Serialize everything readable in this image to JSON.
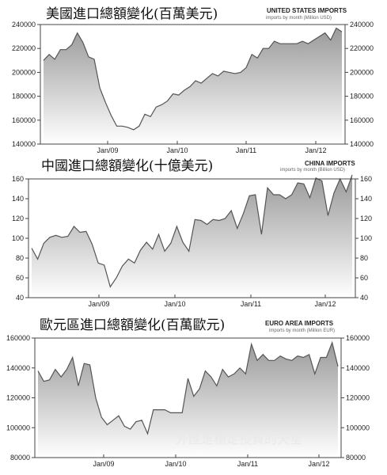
{
  "chart_data": [
    {
      "type": "area",
      "title": "美國進口總額變化(百萬美元)",
      "subtitle": "UNITED STATES IMPORTS",
      "subsubtitle": "imports by month (Million USD)",
      "x_tick_labels": [
        "Jan/09",
        "Jan/10",
        "Jan/11",
        "Jan/12"
      ],
      "ylim": [
        140000,
        240000
      ],
      "y_ticks": [
        140000,
        160000,
        180000,
        200000,
        220000,
        240000
      ],
      "y_tick_labels": [
        "140000",
        "160000",
        "180000",
        "200000",
        "220000",
        "240000"
      ],
      "grid": false,
      "series": [
        {
          "values": [
            210000,
            215000,
            211000,
            219000,
            219000,
            223000,
            233000,
            225000,
            213000,
            211000,
            187000,
            175000,
            164000,
            155000,
            155000,
            154000,
            152000,
            155000,
            165000,
            163000,
            171000,
            173000,
            176000,
            182000,
            181000,
            185000,
            188000,
            193000,
            191000,
            195000,
            199000,
            197000,
            201000,
            200000,
            199000,
            200000,
            204000,
            215000,
            212000,
            220000,
            220000,
            226000,
            224000,
            224000,
            224000,
            224000,
            226000,
            224000,
            227000,
            230000,
            233000,
            227000,
            237000,
            234000
          ]
        }
      ]
    },
    {
      "type": "area",
      "title": "中國進口總額變化(十億美元)",
      "subtitle": "CHINA IMPORTS",
      "subsubtitle": "imports by month (Billion USD)",
      "x_tick_labels": [
        "Jan/09",
        "Jan/10",
        "Jan/11",
        "Jan/12"
      ],
      "ylim": [
        40,
        160
      ],
      "y_ticks": [
        40,
        60,
        80,
        100,
        120,
        140,
        160
      ],
      "y_tick_labels": [
        "40",
        "60",
        "80",
        "100",
        "120",
        "140",
        "160"
      ],
      "grid": false,
      "series": [
        {
          "values": [
            90,
            79,
            95,
            101,
            103,
            101,
            102,
            112,
            106,
            107,
            94,
            75,
            73,
            51,
            60,
            72,
            79,
            75,
            88,
            96,
            89,
            104,
            87,
            95,
            112,
            96,
            87,
            119,
            118,
            114,
            119,
            118,
            120,
            128,
            110,
            125,
            143,
            144,
            104,
            151,
            144,
            144,
            140,
            144,
            156,
            155,
            141,
            161,
            158,
            123,
            146,
            160,
            147,
            164
          ]
        }
      ]
    },
    {
      "type": "area",
      "title": "歐元區進口總額變化(百萬歐元)",
      "subtitle": "EURO AREA IMPORTS",
      "subsubtitle": "imports by month (Million EUR)",
      "x_tick_labels": [
        "Jan/09",
        "Jan/10",
        "Jan/11",
        "Jan/12"
      ],
      "ylim": [
        80000,
        160000
      ],
      "y_ticks": [
        80000,
        100000,
        120000,
        140000,
        160000
      ],
      "y_tick_labels": [
        "80000",
        "100000",
        "120000",
        "140000",
        "160000"
      ],
      "grid": false,
      "series": [
        {
          "values": [
            138000,
            131000,
            132000,
            139000,
            134000,
            139000,
            147000,
            128000,
            143000,
            142000,
            120000,
            107000,
            102000,
            105000,
            108000,
            101000,
            99000,
            104000,
            105000,
            96000,
            112000,
            112000,
            112000,
            110000,
            110000,
            110000,
            133000,
            121000,
            126000,
            138000,
            134000,
            128000,
            139000,
            134000,
            136000,
            140000,
            136000,
            156000,
            145000,
            149000,
            145000,
            145000,
            148000,
            146000,
            145000,
            148000,
            147000,
            149000,
            136000,
            147000,
            147000,
            157000,
            141000
          ]
        }
      ]
    }
  ],
  "watermark": "外匯是穩定投資的天堂"
}
